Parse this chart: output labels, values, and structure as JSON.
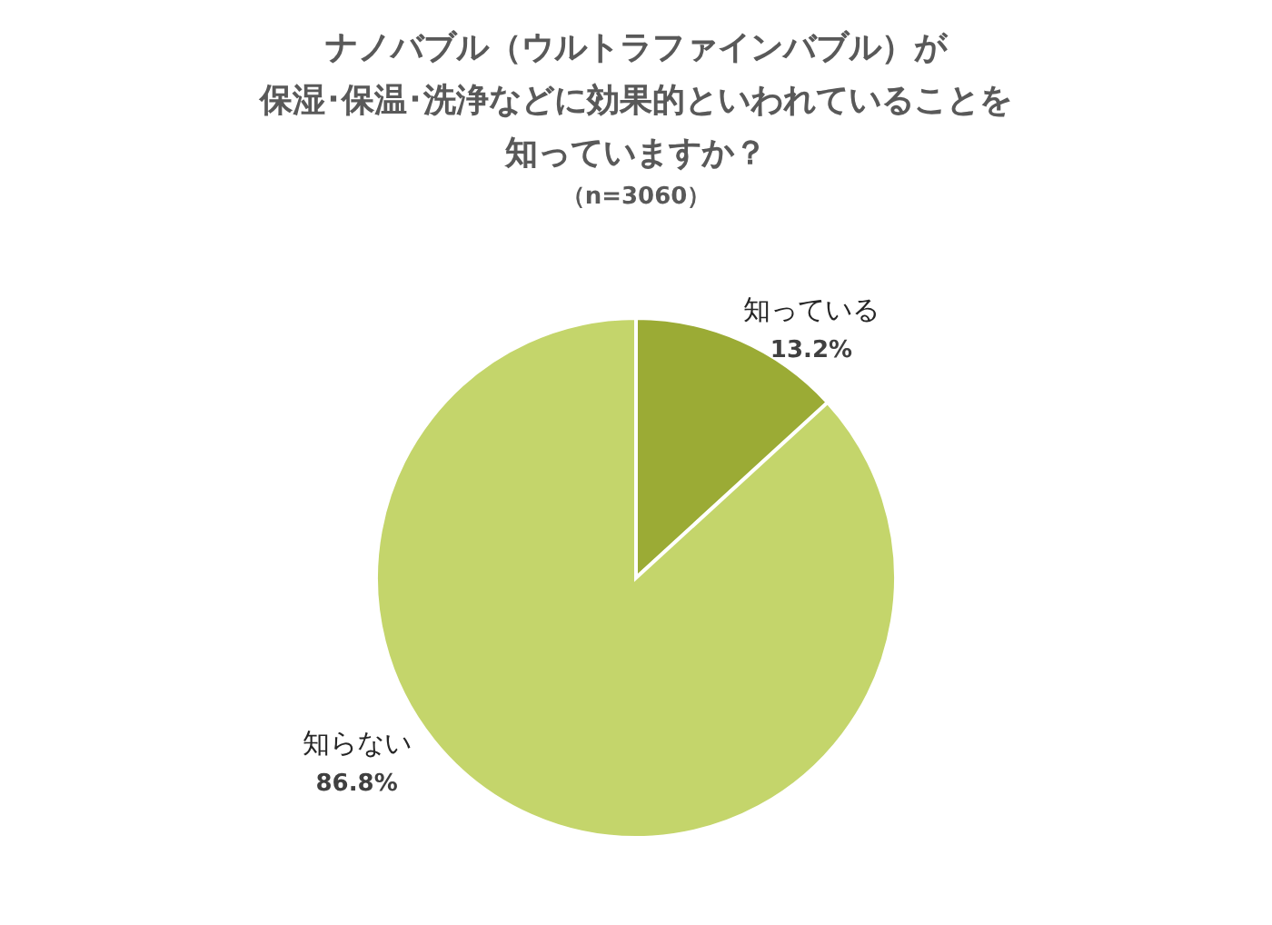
{
  "chart_data": {
    "type": "pie",
    "title": "ナノバブル（ウルトラファインバブル）が保湿･保温･洗浄などに効果的といわれていることを知っていますか？",
    "subtitle": "（n=3060）",
    "categories": [
      "知っている",
      "知らない"
    ],
    "values": [
      13.2,
      86.8
    ],
    "colors": [
      "#9bab35",
      "#c4d56b"
    ],
    "value_labels": [
      "13.2%",
      "86.8%"
    ]
  }
}
